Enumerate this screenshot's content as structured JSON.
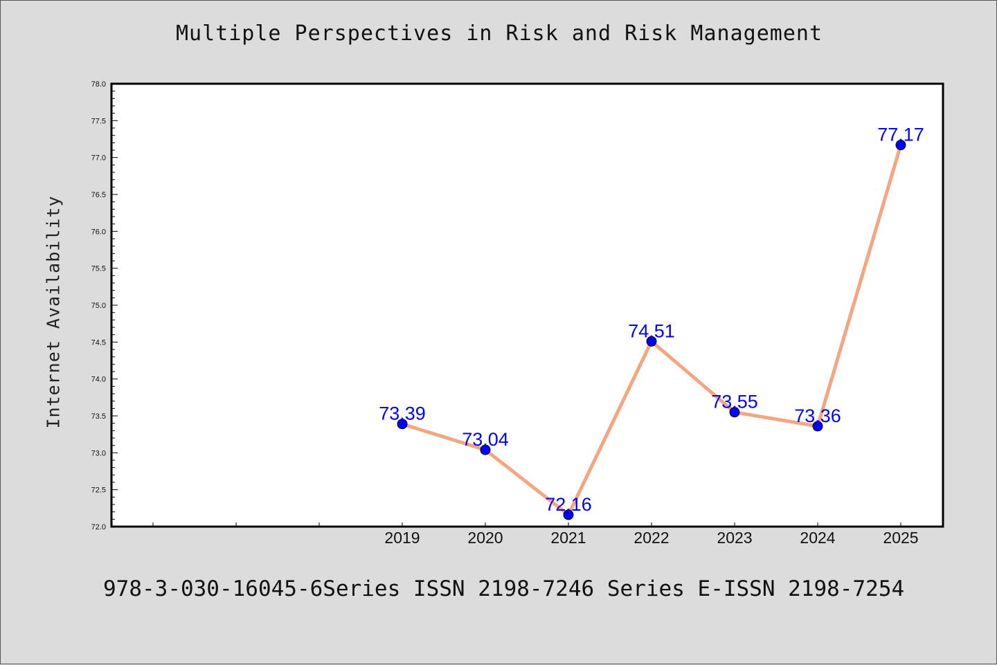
{
  "chart_data": {
    "type": "line",
    "title": "Multiple Perspectives in Risk and Risk Management",
    "xlabel": "",
    "ylabel": "Internet Availability",
    "x": [
      "2019",
      "2020",
      "2021",
      "2022",
      "2023",
      "2024",
      "2025"
    ],
    "series": [
      {
        "values": [
          73.39,
          73.04,
          72.16,
          74.51,
          73.55,
          73.36,
          77.17
        ],
        "data_labels": [
          "73.39",
          "73.04",
          "72.16",
          "74.51",
          "73.55",
          "73.36",
          "77.17"
        ],
        "line_color": "#f4a582",
        "marker_color": "#0000ff"
      }
    ],
    "ylim": [
      72.0,
      78.0
    ],
    "yticks": [
      "72.0",
      "72.5",
      "73.0",
      "73.5",
      "74.0",
      "74.5",
      "75.0",
      "75.5",
      "76.0",
      "76.5",
      "77.0",
      "77.5",
      "78.0"
    ],
    "grid": false,
    "legend": "none",
    "footer": "978-3-030-16045-6Series ISSN 2198-7246 Series E-ISSN 2198-7254",
    "colors": {
      "background": "#dcdcdc",
      "plot_background": "#ffffff",
      "label_color": "#0000ff"
    }
  }
}
